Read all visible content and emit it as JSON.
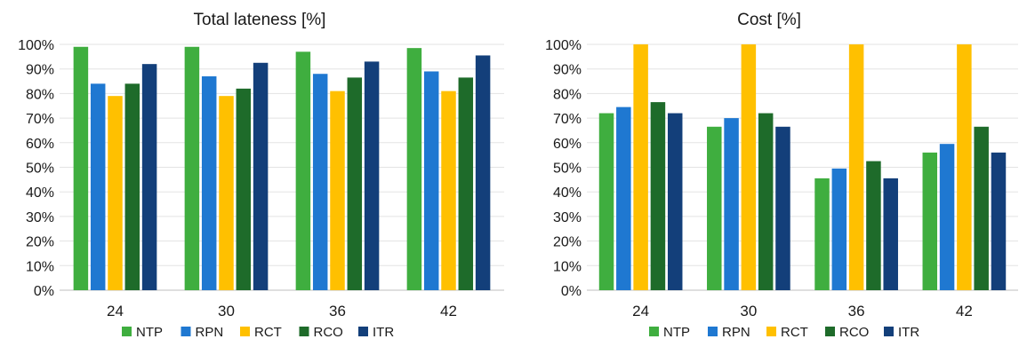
{
  "legend_items": [
    {
      "name": "NTP",
      "color": "#3fae3f"
    },
    {
      "name": "RPN",
      "color": "#1f78d1"
    },
    {
      "name": "RCT",
      "color": "#ffc000"
    },
    {
      "name": "RCO",
      "color": "#1e6b2a"
    },
    {
      "name": "ITR",
      "color": "#133f7a"
    }
  ],
  "chart_data": [
    {
      "type": "bar",
      "title": "Total lateness [%]",
      "categories": [
        "24",
        "30",
        "36",
        "42"
      ],
      "ylim": [
        0,
        100
      ],
      "yticks": [
        "0%",
        "10%",
        "20%",
        "30%",
        "40%",
        "50%",
        "60%",
        "70%",
        "80%",
        "90%",
        "100%"
      ],
      "grid": true,
      "legend": "bottom",
      "series": [
        {
          "name": "NTP",
          "values": [
            99,
            99,
            97,
            98.5
          ]
        },
        {
          "name": "RPN",
          "values": [
            84,
            87,
            88,
            89
          ]
        },
        {
          "name": "RCT",
          "values": [
            79,
            79,
            81,
            81
          ]
        },
        {
          "name": "RCO",
          "values": [
            84,
            82,
            86.5,
            86.5
          ]
        },
        {
          "name": "ITR",
          "values": [
            92,
            92.5,
            93,
            95.5
          ]
        }
      ]
    },
    {
      "type": "bar",
      "title": "Cost [%]",
      "categories": [
        "24",
        "30",
        "36",
        "42"
      ],
      "ylim": [
        0,
        100
      ],
      "yticks": [
        "0%",
        "10%",
        "20%",
        "30%",
        "40%",
        "50%",
        "60%",
        "70%",
        "80%",
        "90%",
        "100%"
      ],
      "grid": true,
      "legend": "bottom",
      "series": [
        {
          "name": "NTP",
          "values": [
            72,
            66.5,
            45.5,
            56
          ]
        },
        {
          "name": "RPN",
          "values": [
            74.5,
            70,
            49.5,
            59.5
          ]
        },
        {
          "name": "RCT",
          "values": [
            100,
            100,
            100,
            100
          ]
        },
        {
          "name": "RCO",
          "values": [
            76.5,
            72,
            52.5,
            66.5
          ]
        },
        {
          "name": "ITR",
          "values": [
            72,
            66.5,
            45.5,
            56
          ]
        }
      ]
    }
  ]
}
